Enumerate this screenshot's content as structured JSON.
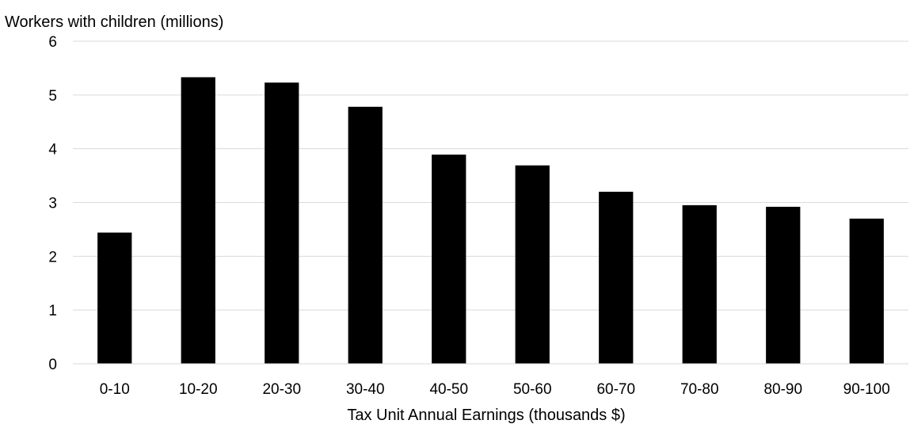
{
  "chart_data": {
    "type": "bar",
    "title": "",
    "ylabel": "Workers with children (millions)",
    "xlabel": "Tax Unit Annual Earnings (thousands $)",
    "categories": [
      "0-10",
      "10-20",
      "20-30",
      "30-40",
      "40-50",
      "50-60",
      "60-70",
      "70-80",
      "80-90",
      "90-100"
    ],
    "series": [
      {
        "values": [
          2.44,
          5.33,
          5.23,
          4.78,
          3.89,
          3.69,
          3.2,
          2.95,
          2.92,
          2.7
        ],
        "color": "#000000"
      }
    ],
    "ylim": [
      0,
      6
    ],
    "yticks": [
      0,
      1,
      2,
      3,
      4,
      5,
      6
    ],
    "grid": true,
    "gridColor": "#d9d9d9",
    "legend": "none"
  }
}
